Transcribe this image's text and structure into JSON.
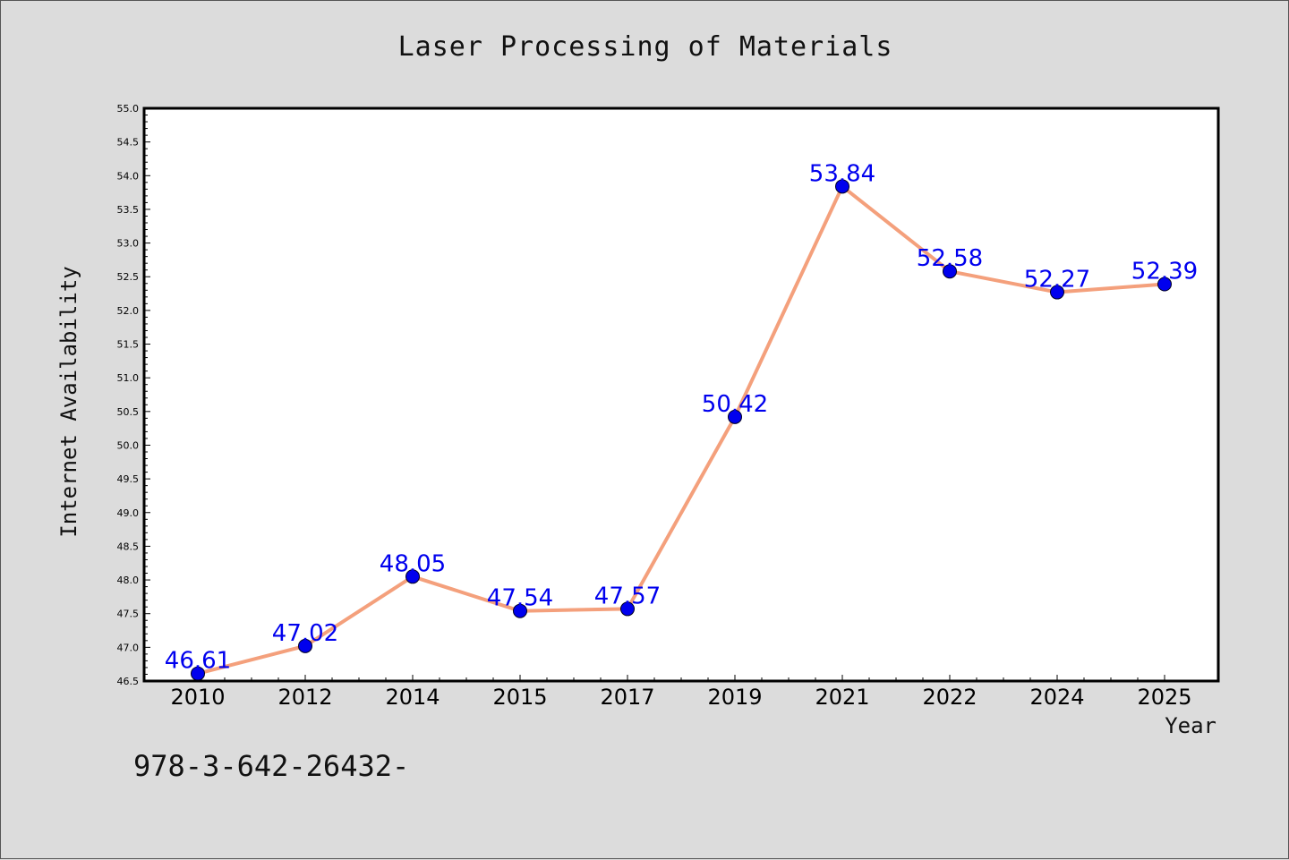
{
  "chart_data": {
    "type": "line",
    "title": "Laser Processing of Materials",
    "xlabel": "Year",
    "ylabel": "Internet Availability",
    "categories": [
      "2010",
      "2012",
      "2014",
      "2015",
      "2017",
      "2019",
      "2021",
      "2022",
      "2024",
      "2025"
    ],
    "values": [
      46.61,
      47.02,
      48.05,
      47.54,
      47.57,
      50.42,
      53.84,
      52.58,
      52.27,
      52.39
    ],
    "data_labels": [
      "46.61",
      "47.02",
      "48.05",
      "47.54",
      "47.57",
      "50.42",
      "53.84",
      "52.58",
      "52.27",
      "52.39"
    ],
    "ylim": [
      46.5,
      55.0
    ],
    "yticks": [
      "46.5",
      "47.0",
      "47.5",
      "48.0",
      "48.5",
      "49.0",
      "49.5",
      "50.0",
      "50.5",
      "51.0",
      "51.5",
      "52.0",
      "52.5",
      "53.0",
      "53.5",
      "54.0",
      "54.5",
      "55.0"
    ],
    "grid": false,
    "colors": {
      "line": "#f4a07c",
      "marker": "#0000ee",
      "label": "#0000ee"
    }
  },
  "footer_text": "978-3-642-26432-"
}
